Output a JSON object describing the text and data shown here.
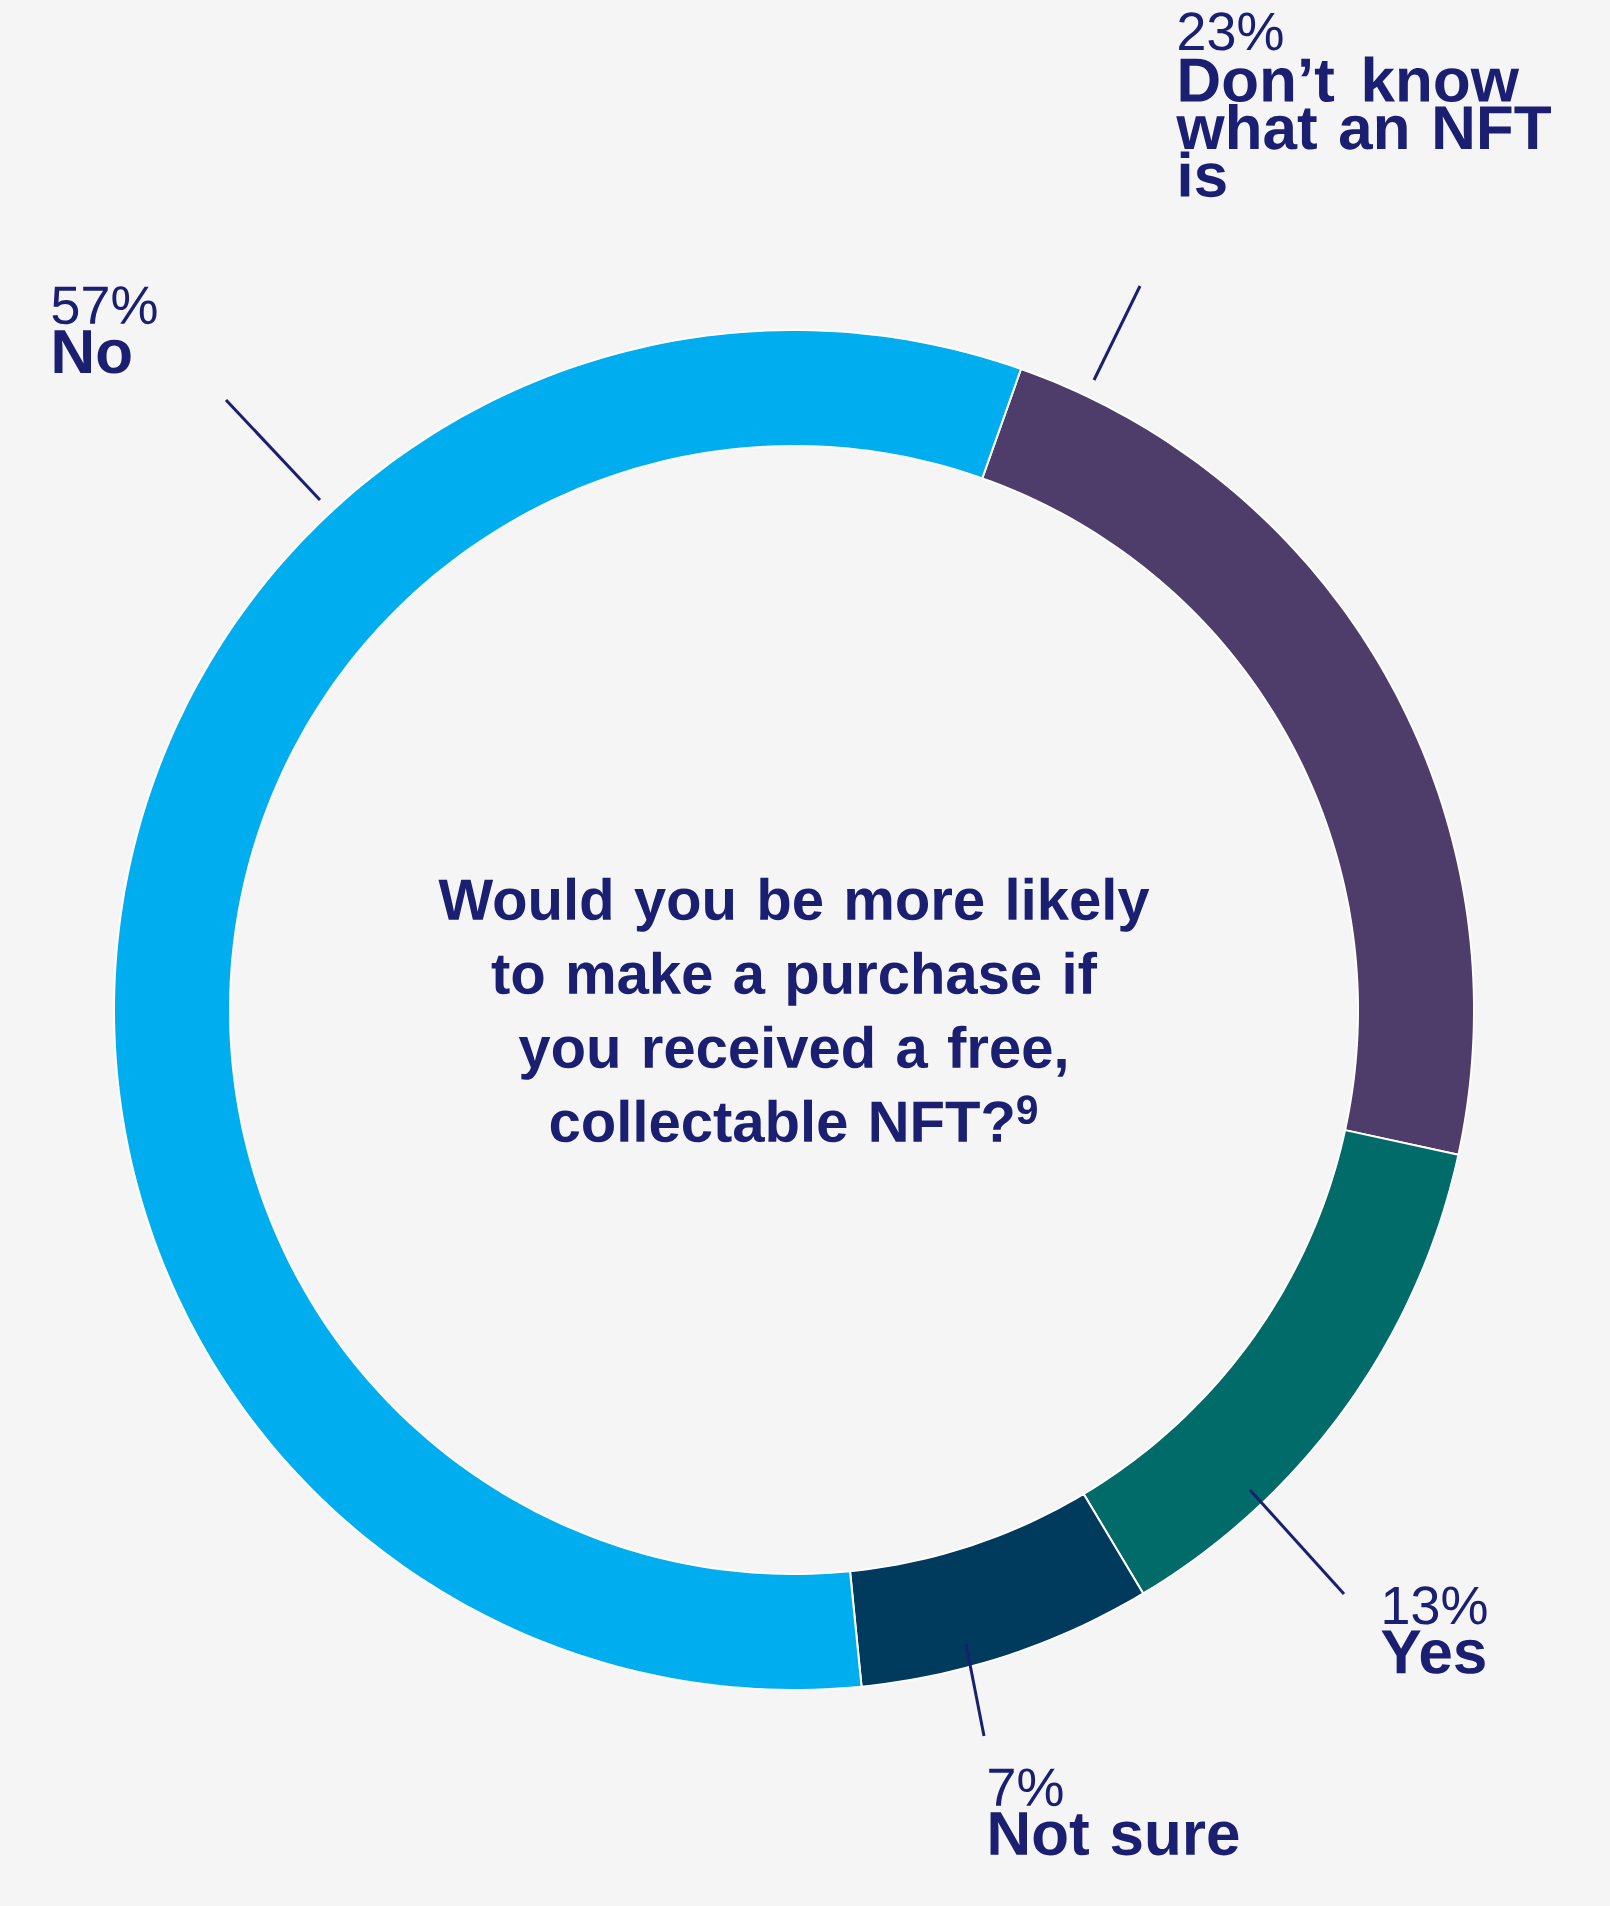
{
  "chart_data": {
    "type": "donut",
    "title": "Would you be more likely to make a purchase if you received a free, collectable NFT?$^{9}$",
    "categories": [
      "Don’t know what an NFT is",
      "Yes",
      "Not sure",
      "No"
    ],
    "values": [
      23,
      13,
      7,
      57
    ],
    "colors": [
      "#4e3d6b",
      "#006b68",
      "#003a5d",
      "#00aeef"
    ],
    "value_labels": [
      "23%",
      "13%",
      "7%",
      "57%"
    ]
  }
}
